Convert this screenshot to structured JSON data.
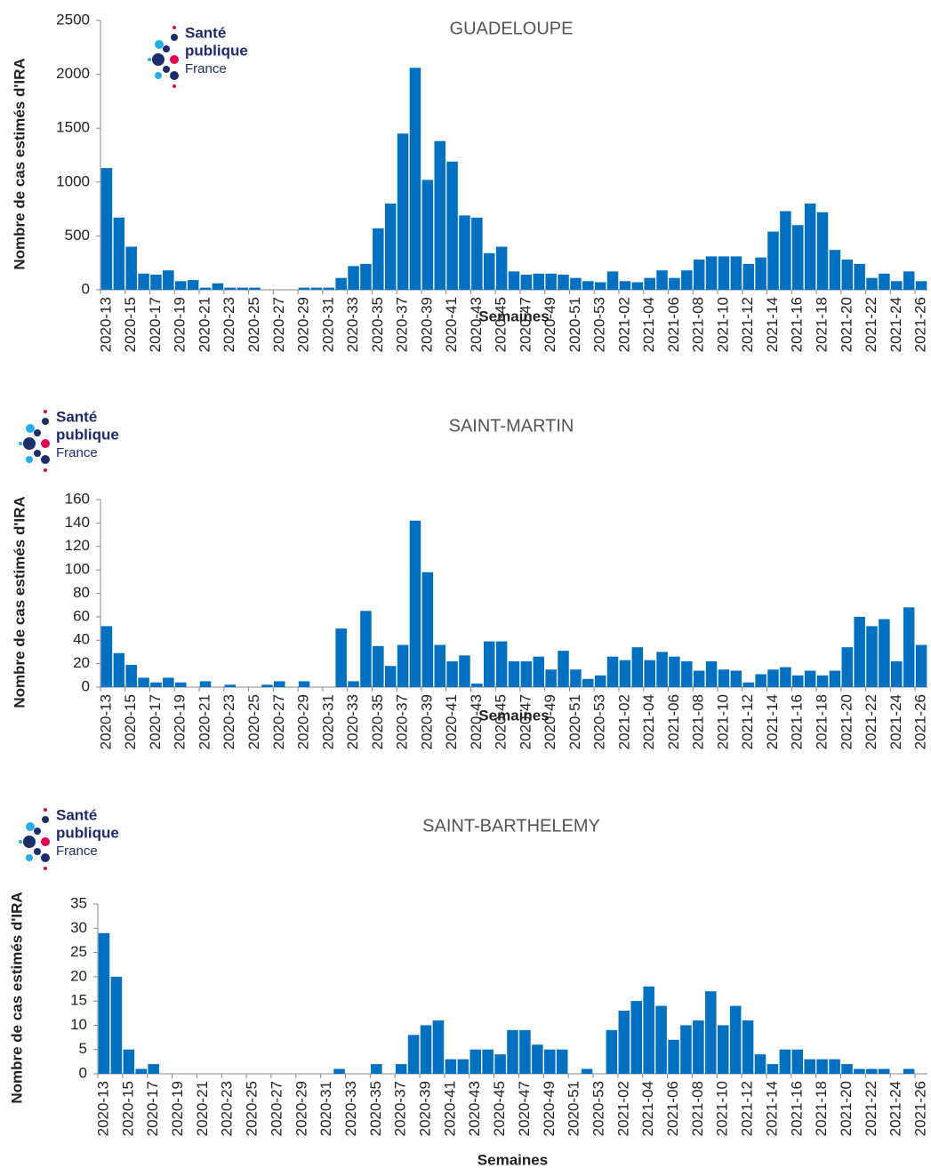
{
  "chart_data": [
    {
      "type": "bar",
      "title": "GUADELOUPE",
      "logo": [
        "Santé",
        "publique",
        "France"
      ],
      "ylabel": "Nombre de cas estimés d'IRA",
      "xlabel": "Semaines",
      "categories": [
        "2020-13",
        null,
        "2020-15",
        null,
        "2020-17",
        null,
        "2020-19",
        null,
        "2020-21",
        null,
        "2020-23",
        null,
        "2020-25",
        null,
        "2020-27",
        null,
        "2020-29",
        null,
        "2020-31",
        null,
        "2020-33",
        null,
        "2020-35",
        null,
        "2020-37",
        null,
        "2020-39",
        null,
        "2020-41",
        null,
        "2020-43",
        null,
        "2020-45",
        null,
        "2020-47",
        null,
        "2020-49",
        null,
        "2020-51",
        null,
        "2020-53",
        null,
        "2021-02",
        null,
        "2021-04",
        null,
        "2021-06",
        null,
        "2021-08",
        null,
        "2021-10",
        null,
        "2021-12",
        null,
        "2021-14",
        null,
        "2021-16",
        null,
        "2021-18",
        null,
        "2021-20",
        null,
        "2021-22",
        null,
        "2021-24",
        null,
        "2021-26"
      ],
      "values": [
        1130,
        670,
        400,
        150,
        140,
        180,
        80,
        90,
        20,
        60,
        20,
        20,
        20,
        0,
        0,
        0,
        20,
        20,
        20,
        110,
        220,
        240,
        570,
        800,
        1450,
        2060,
        1020,
        1380,
        1190,
        690,
        670,
        340,
        400,
        170,
        140,
        150,
        150,
        140,
        110,
        80,
        70,
        170,
        80,
        70,
        110,
        180,
        110,
        180,
        280,
        310,
        310,
        310,
        240,
        300,
        540,
        730,
        600,
        800,
        720,
        370,
        280,
        240,
        110,
        150,
        80,
        170,
        80
      ],
      "color": "#0070c0",
      "ylim": [
        0,
        2500
      ],
      "yticks": [
        0,
        500,
        1000,
        1500,
        2000,
        2500
      ]
    },
    {
      "type": "bar",
      "title": "SAINT-MARTIN",
      "logo": [
        "Santé",
        "publique",
        "France"
      ],
      "ylabel": "Nombre de cas estimés d'IRA",
      "xlabel": "Semaines",
      "categories": [
        "2020-13",
        null,
        "2020-15",
        null,
        "2020-17",
        null,
        "2020-19",
        null,
        "2020-21",
        null,
        "2020-23",
        null,
        "2020-25",
        null,
        "2020-27",
        null,
        "2020-29",
        null,
        "2020-31",
        null,
        "2020-33",
        null,
        "2020-35",
        null,
        "2020-37",
        null,
        "2020-39",
        null,
        "2020-41",
        null,
        "2020-43",
        null,
        "2020-45",
        null,
        "2020-47",
        null,
        "2020-49",
        null,
        "2020-51",
        null,
        "2020-53",
        null,
        "2021-02",
        null,
        "2021-04",
        null,
        "2021-06",
        null,
        "2021-08",
        null,
        "2021-10",
        null,
        "2021-12",
        null,
        "2021-14",
        null,
        "2021-16",
        null,
        "2021-18",
        null,
        "2021-20",
        null,
        "2021-22",
        null,
        "2021-24",
        null,
        "2021-26"
      ],
      "values": [
        52,
        29,
        19,
        8,
        4,
        8,
        4,
        0,
        5,
        0,
        2,
        0,
        0,
        2,
        5,
        0,
        5,
        0,
        0,
        50,
        5,
        65,
        35,
        18,
        36,
        142,
        98,
        36,
        22,
        27,
        3,
        39,
        39,
        22,
        22,
        26,
        15,
        31,
        15,
        7,
        10,
        26,
        23,
        34,
        23,
        30,
        26,
        22,
        14,
        22,
        15,
        14,
        4,
        11,
        15,
        17,
        10,
        14,
        10,
        14,
        34,
        60,
        52,
        58,
        22,
        68,
        36
      ],
      "color": "#0070c0",
      "ylim": [
        0,
        160
      ],
      "yticks": [
        0,
        20,
        40,
        60,
        80,
        100,
        120,
        140,
        160
      ]
    },
    {
      "type": "bar",
      "title": "SAINT-BARTHELEMY",
      "logo": [
        "Santé",
        "publique",
        "France"
      ],
      "ylabel": "Nombre de cas estimés d'IRA",
      "xlabel": "Semaines",
      "categories": [
        "2020-13",
        null,
        "2020-15",
        null,
        "2020-17",
        null,
        "2020-19",
        null,
        "2020-21",
        null,
        "2020-23",
        null,
        "2020-25",
        null,
        "2020-27",
        null,
        "2020-29",
        null,
        "2020-31",
        null,
        "2020-33",
        null,
        "2020-35",
        null,
        "2020-37",
        null,
        "2020-39",
        null,
        "2020-41",
        null,
        "2020-43",
        null,
        "2020-45",
        null,
        "2020-47",
        null,
        "2020-49",
        null,
        "2020-51",
        null,
        "2020-53",
        null,
        "2021-02",
        null,
        "2021-04",
        null,
        "2021-06",
        null,
        "2021-08",
        null,
        "2021-10",
        null,
        "2021-12",
        null,
        "2021-14",
        null,
        "2021-16",
        null,
        "2021-18",
        null,
        "2021-20",
        null,
        "2021-22",
        null,
        "2021-24",
        null,
        "2021-26"
      ],
      "values": [
        29,
        20,
        5,
        1,
        2,
        0,
        0,
        0,
        0,
        0,
        0,
        0,
        0,
        0,
        0,
        0,
        0,
        0,
        0,
        1,
        0,
        0,
        2,
        0,
        2,
        8,
        10,
        11,
        3,
        3,
        5,
        5,
        4,
        9,
        9,
        6,
        5,
        5,
        0,
        1,
        0,
        9,
        13,
        15,
        18,
        14,
        7,
        10,
        11,
        17,
        10,
        14,
        11,
        4,
        2,
        5,
        5,
        3,
        3,
        3,
        2,
        1,
        1,
        1,
        0,
        1,
        0
      ],
      "color": "#0070c0",
      "ylim": [
        0,
        35
      ],
      "yticks": [
        0,
        5,
        10,
        15,
        20,
        25,
        30,
        35
      ]
    }
  ]
}
